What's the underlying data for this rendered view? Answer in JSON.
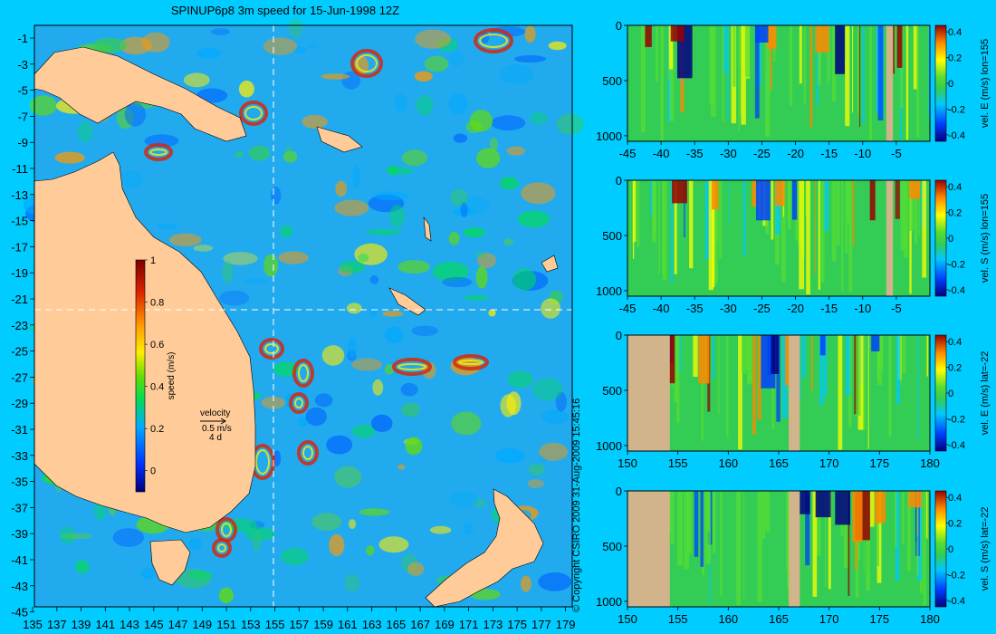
{
  "title": "SPINUP6p8 3m speed for 15-Jun-1998 12Z",
  "copyright": "© Copyright CSIRO 2009   31-Aug-2009 15:45:16",
  "colors": {
    "background": "#00ccff",
    "land": "#ffcc99",
    "section_land": "#d2b48c",
    "guide_line": "#ffffff"
  },
  "map": {
    "lon_ticks": [
      "135",
      "137",
      "139",
      "141",
      "143",
      "145",
      "147",
      "149",
      "151",
      "153",
      "155",
      "157",
      "159",
      "161",
      "163",
      "165",
      "167",
      "169",
      "171",
      "173",
      "175",
      "177",
      "179"
    ],
    "lat_ticks": [
      "-1",
      "-3",
      "-5",
      "-7",
      "-9",
      "-11",
      "-13",
      "-15",
      "-17",
      "-19",
      "-21",
      "-23",
      "-25",
      "-27",
      "-29",
      "-31",
      "-33",
      "-35",
      "-37",
      "-39",
      "-41",
      "-43",
      "-45"
    ],
    "colorbar": {
      "label": "speed (m/s)",
      "ticks": [
        "1",
        "0.8",
        "0.6",
        "0.4",
        "0.2",
        "0"
      ],
      "range": [
        -0.1,
        1.0
      ]
    },
    "velocity_key": {
      "label": "velocity",
      "value": "0.5 m/s",
      "time": "4 d"
    },
    "section_lon": 155,
    "section_lat": -22
  },
  "chart_data": [
    {
      "type": "heatmap",
      "title": "",
      "xlabel": "",
      "ylabel": "",
      "x_ticks": [
        "-45",
        "-40",
        "-35",
        "-30",
        "-25",
        "-20",
        "-15",
        "-10",
        "-5"
      ],
      "x_range": [
        -45,
        0
      ],
      "y_ticks": [
        "0",
        "500",
        "1000"
      ],
      "y_range": [
        0,
        1050
      ],
      "colorbar_label": "vel. E (m/s) lon=155",
      "colorbar_ticks": [
        "0.4",
        "0.2",
        "0",
        "-0.2",
        "-0.4"
      ],
      "clim": [
        -0.45,
        0.45
      ],
      "land_gaps": [
        [
          -6.5,
          -5.5
        ]
      ]
    },
    {
      "type": "heatmap",
      "title": "",
      "xlabel": "",
      "ylabel": "",
      "x_ticks": [
        "-45",
        "-40",
        "-35",
        "-30",
        "-25",
        "-20",
        "-15",
        "-10",
        "-5"
      ],
      "x_range": [
        -45,
        0
      ],
      "y_ticks": [
        "0",
        "500",
        "1000"
      ],
      "y_range": [
        0,
        1050
      ],
      "colorbar_label": "vel. S (m/s) lon=155",
      "colorbar_ticks": [
        "0.4",
        "0.2",
        "0",
        "-0.2",
        "-0.4"
      ],
      "clim": [
        -0.45,
        0.45
      ],
      "land_gaps": [
        [
          -6.5,
          -5.5
        ]
      ]
    },
    {
      "type": "heatmap",
      "title": "",
      "xlabel": "",
      "ylabel": "",
      "x_ticks": [
        "150",
        "155",
        "160",
        "165",
        "170",
        "175",
        "180"
      ],
      "x_range": [
        150,
        180
      ],
      "y_ticks": [
        "0",
        "500",
        "1000"
      ],
      "y_range": [
        0,
        1050
      ],
      "colorbar_label": "vel. E (m/s) lat=-22",
      "colorbar_ticks": [
        "0.4",
        "0.2",
        "0",
        "-0.2",
        "-0.4"
      ],
      "clim": [
        -0.45,
        0.45
      ],
      "land_gaps": [
        [
          150,
          154.2
        ],
        [
          166,
          167.1
        ]
      ]
    },
    {
      "type": "heatmap",
      "title": "",
      "xlabel": "",
      "ylabel": "",
      "x_ticks": [
        "150",
        "155",
        "160",
        "165",
        "170",
        "175",
        "180"
      ],
      "x_range": [
        150,
        180
      ],
      "y_ticks": [
        "0",
        "500",
        "1000"
      ],
      "y_range": [
        0,
        1050
      ],
      "colorbar_label": "vel. S (m/s) lat=-22",
      "colorbar_ticks": [
        "0.4",
        "0.2",
        "0",
        "-0.2",
        "-0.4"
      ],
      "clim": [
        -0.45,
        0.45
      ],
      "land_gaps": [
        [
          150,
          154.2
        ],
        [
          166,
          167.1
        ]
      ]
    }
  ]
}
